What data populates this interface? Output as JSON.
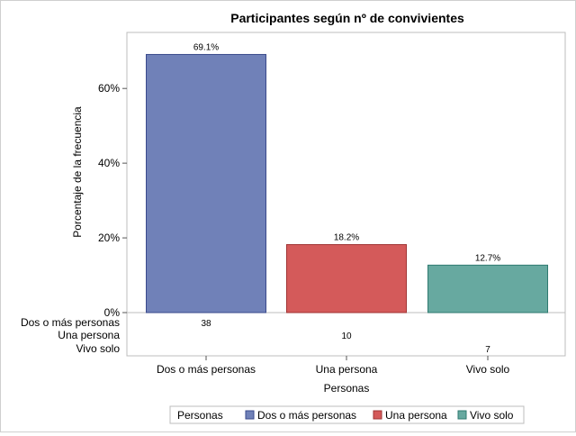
{
  "chart_data": {
    "type": "bar",
    "title": "Participantes según nº de convivientes",
    "xlabel": "Personas",
    "ylabel": "Porcentaje de la frecuencia",
    "categories": [
      "Dos o más personas",
      "Una persona",
      "Vivo solo"
    ],
    "values": [
      69.1,
      18.2,
      12.7
    ],
    "value_labels": [
      "69.1%",
      "18.2%",
      "12.7%"
    ],
    "counts": [
      38,
      10,
      7
    ],
    "count_labels": [
      "38",
      "10",
      "7"
    ],
    "ylim": [
      0,
      75
    ],
    "yticks": [
      0,
      20,
      40,
      60
    ],
    "ytick_labels": [
      "0%",
      "20%",
      "40%",
      "60%"
    ],
    "grid": false,
    "legend": {
      "title": "Personas",
      "placement": "bottom",
      "entries": [
        "Dos o más personas",
        "Una persona",
        "Vivo solo"
      ]
    },
    "colors": [
      "#7081b8",
      "#d45a5a",
      "#67a9a0"
    ],
    "edge_colors": [
      "#3a4a8c",
      "#a03434",
      "#2f7a70"
    ]
  }
}
